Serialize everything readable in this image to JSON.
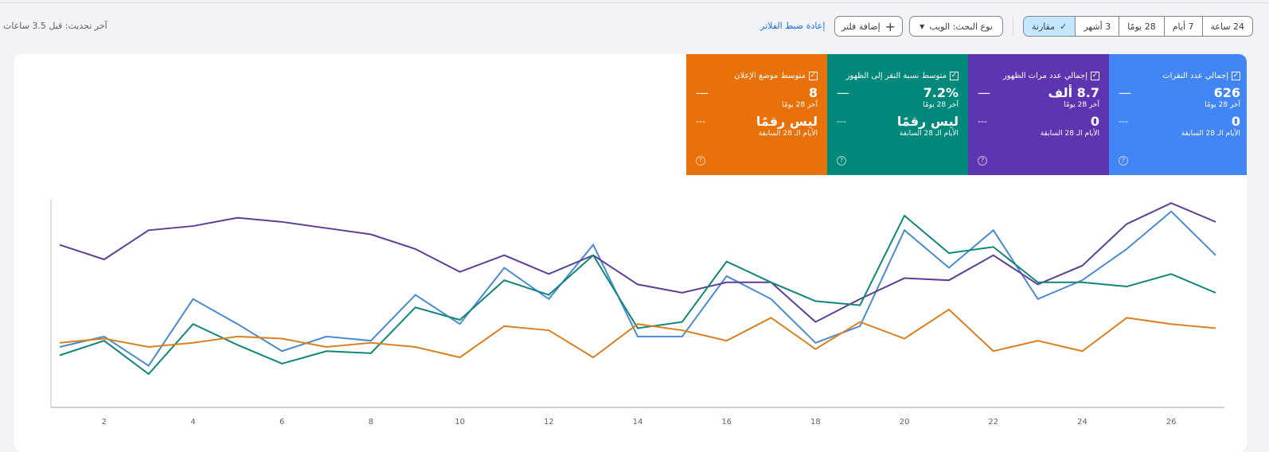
{
  "header": {
    "last_updated": "آخر تحديث: قبل 3.5 ساعات",
    "reset_filters": "إعادة ضبط الفلاتر",
    "add_filter": "إضافة فلتر",
    "search_type": "نوع البحث: الويب",
    "compare": "مقارنة",
    "ranges": [
      "24 ساعة",
      "7 أيام",
      "28 يومًا",
      "3 أشهر"
    ]
  },
  "cards": [
    {
      "label": "إجمالي عدد النقرات",
      "value": "626",
      "period": "آخر 28 يومًا",
      "prev_value": "0",
      "prev_period": "الأيام الـ 28 السابقة",
      "color": "#4285f4"
    },
    {
      "label": "إجمالي عدد مرات الظهور",
      "value": "8.7 ألف",
      "period": "آخر 28 يومًا",
      "prev_value": "0",
      "prev_period": "الأيام الـ 28 السابقة",
      "color": "#5e35b1"
    },
    {
      "label": "متوسط نسبة النقر إلى الظهور",
      "value": "7.2%",
      "period": "آخر 28 يومًا",
      "prev_value": "ليس رقمًا",
      "prev_period": "الأيام الـ 28 السابقة",
      "color": "#00897b"
    },
    {
      "label": "متوسط موضع الإعلان",
      "value": "8",
      "period": "آخر 28 يومًا",
      "prev_value": "ليس رقمًا",
      "prev_period": "الأيام الـ 28 السابقة",
      "color": "#e8710a"
    }
  ],
  "chart_data": {
    "type": "line",
    "x": [
      1,
      2,
      3,
      4,
      5,
      6,
      7,
      8,
      9,
      10,
      11,
      12,
      13,
      14,
      15,
      16,
      17,
      18,
      19,
      20,
      21,
      22,
      23,
      24,
      25,
      26,
      27
    ],
    "xticks": [
      "2",
      "4",
      "6",
      "8",
      "10",
      "12",
      "14",
      "16",
      "18",
      "20",
      "22",
      "24",
      "26"
    ],
    "y_scale": "relative (no axis labels shown)",
    "grid": false,
    "series": [
      {
        "color": "#4285f4",
        "line": "#4a8ad0",
        "values": [
          29,
          34,
          20,
          52,
          40,
          27,
          34,
          32,
          54,
          40,
          67,
          52,
          78,
          34,
          34,
          63,
          52,
          31,
          39,
          85,
          67,
          85,
          52,
          61,
          76,
          94,
          73
        ]
      },
      {
        "color": "#5e35b1",
        "line": "#5e3e95",
        "values": [
          78,
          71,
          85,
          87,
          91,
          89,
          86,
          83,
          76,
          65,
          73,
          64,
          73,
          59,
          55,
          60,
          60,
          41,
          52,
          62,
          61,
          73,
          59,
          68,
          88,
          98,
          89
        ]
      },
      {
        "color": "#00897b",
        "line": "#10867a",
        "values": [
          25,
          32,
          16,
          40,
          30,
          21,
          27,
          26,
          48,
          42,
          61,
          54,
          73,
          38,
          41,
          70,
          60,
          51,
          49,
          92,
          74,
          77,
          60,
          60,
          58,
          64,
          55
        ]
      },
      {
        "color": "#e8710a",
        "line": "#d98020",
        "values": [
          31,
          33,
          29,
          31,
          34,
          33,
          29,
          31,
          29,
          24,
          39,
          37,
          24,
          40,
          37,
          32,
          43,
          28,
          41,
          33,
          47,
          27,
          32,
          27,
          43,
          40,
          38
        ]
      }
    ]
  }
}
